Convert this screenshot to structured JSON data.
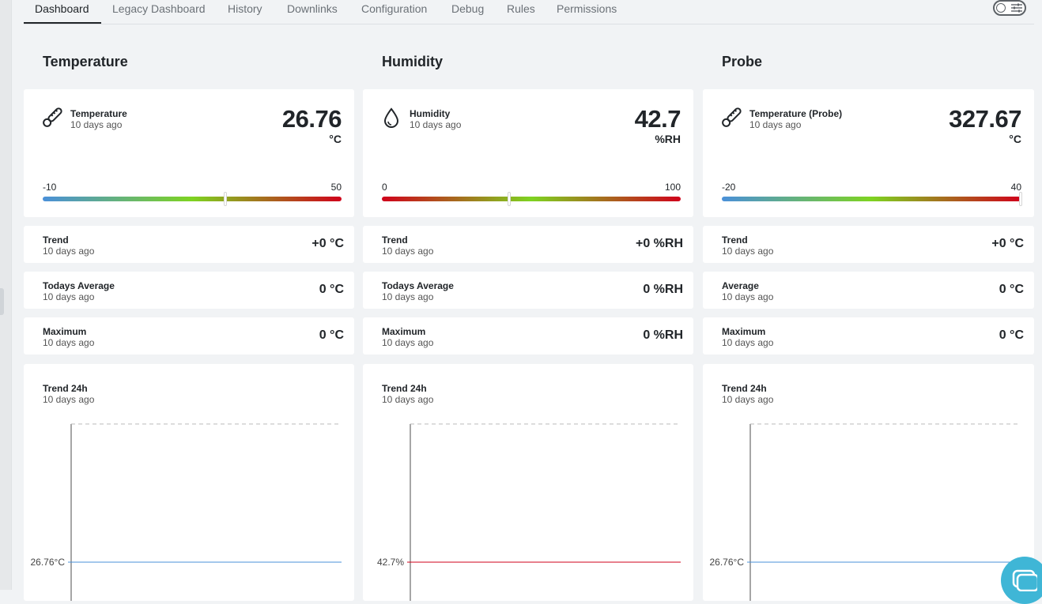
{
  "tabs": [
    "Dashboard",
    "Legacy Dashboard",
    "History",
    "Downlinks",
    "Configuration",
    "Debug",
    "Rules",
    "Permissions"
  ],
  "active_tab": "Dashboard",
  "columns": [
    {
      "title": "Temperature",
      "icon": "thermometer-icon",
      "sensor_name": "Temperature",
      "sensor_time": "10 days ago",
      "value": "26.76",
      "unit": "°C",
      "scale_min": "-10",
      "scale_max": "50",
      "gauge_fraction": 0.61,
      "gauge_colors": [
        "#4a90d9",
        "#7ed321",
        "#d0021b"
      ],
      "rows": [
        {
          "label": "Trend",
          "time": "10 days ago",
          "value": "+0 °C"
        },
        {
          "label": "Todays Average",
          "time": "10 days ago",
          "value": "0 °C"
        },
        {
          "label": "Maximum",
          "time": "10 days ago",
          "value": "0 °C"
        }
      ],
      "chart_label": "Trend 24h",
      "chart_time": "10 days ago",
      "y_tick": "26.76°C",
      "line_color": "#4a90d9"
    },
    {
      "title": "Humidity",
      "icon": "droplet-icon",
      "sensor_name": "Humidity",
      "sensor_time": "10 days ago",
      "value": "42.7",
      "unit": "%RH",
      "scale_min": "0",
      "scale_max": "100",
      "gauge_fraction": 0.427,
      "gauge_colors": [
        "#d0021b",
        "#7ed321",
        "#d0021b"
      ],
      "rows": [
        {
          "label": "Trend",
          "time": "10 days ago",
          "value": "+0 %RH"
        },
        {
          "label": "Todays Average",
          "time": "10 days ago",
          "value": "0 %RH"
        },
        {
          "label": "Maximum",
          "time": "10 days ago",
          "value": "0 %RH"
        }
      ],
      "chart_label": "Trend 24h",
      "chart_time": "10 days ago",
      "y_tick": "42.7%",
      "line_color": "#d0021b"
    },
    {
      "title": "Probe",
      "icon": "thermometer-icon",
      "sensor_name": "Temperature (Probe)",
      "sensor_time": "10 days ago",
      "value": "327.67",
      "unit": "°C",
      "scale_min": "-20",
      "scale_max": "40",
      "gauge_fraction": 1.0,
      "gauge_colors": [
        "#4a90d9",
        "#7ed321",
        "#d0021b"
      ],
      "rows": [
        {
          "label": "Trend",
          "time": "10 days ago",
          "value": "+0 °C"
        },
        {
          "label": "Average",
          "time": "10 days ago",
          "value": "0 °C"
        },
        {
          "label": "Maximum",
          "time": "10 days ago",
          "value": "0 °C"
        }
      ],
      "chart_label": "Trend 24h",
      "chart_time": "10 days ago",
      "y_tick": "26.76°C",
      "line_color": "#4a90d9"
    }
  ]
}
